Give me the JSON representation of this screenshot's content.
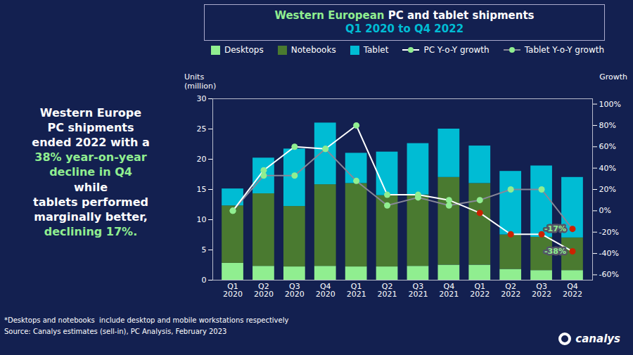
{
  "chart_data": {
    "type": "bar",
    "title": "Western European PC and tablet shipments",
    "title_color": "#ffffff",
    "title_highlight": {
      "text": "Western European",
      "color": "#90ee90"
    },
    "subtitle": "Q1 2020 to Q4 2022",
    "subtitle_color": "#00bcd4",
    "y_label": "Units\n(million)",
    "y2_label": "Growth",
    "categories": [
      "Q1\n2020",
      "Q2\n2020",
      "Q3\n2020",
      "Q4\n2020",
      "Q1\n2021",
      "Q2\n2021",
      "Q3\n2021",
      "Q4\n2021",
      "Q1\n2022",
      "Q2\n2022",
      "Q3\n2022",
      "Q4\n2022"
    ],
    "series": [
      {
        "name": "Desktops",
        "type": "bar",
        "color": "#90ee90",
        "values": [
          2.8,
          2.3,
          2.2,
          2.3,
          2.2,
          2.2,
          2.3,
          2.5,
          2.5,
          1.8,
          1.6,
          1.6
        ]
      },
      {
        "name": "Notebooks",
        "type": "bar",
        "color": "#4a7a30",
        "values": [
          9.5,
          12.0,
          10.0,
          13.5,
          13.8,
          11.8,
          11.8,
          14.5,
          13.5,
          5.7,
          5.5,
          5.4
        ]
      },
      {
        "name": "Tablet",
        "type": "bar",
        "color": "#00bcd4",
        "values": [
          2.8,
          5.9,
          9.5,
          10.2,
          5.0,
          7.2,
          8.5,
          8.0,
          6.2,
          10.5,
          11.8,
          10.0
        ]
      },
      {
        "name": "PC Y-o-Y growth",
        "type": "line",
        "axis": "y2",
        "color": "#ffffff",
        "marker": "circle",
        "colors": [
          "#90ee90",
          "#90ee90",
          "#90ee90",
          "#90ee90",
          "#90ee90",
          "#90ee90",
          "#90ee90",
          "#90ee90",
          "#cc2200",
          "#cc2200",
          "#cc2200",
          "#cc2200"
        ],
        "values": [
          0.0,
          38.0,
          60.0,
          58.0,
          80.0,
          15.0,
          15.0,
          10.0,
          -2.0,
          -22.0,
          -22.0,
          -38.0
        ]
      },
      {
        "name": "Tablet Y-o-Y growth",
        "type": "line",
        "axis": "y2",
        "color": "#888899",
        "marker": "circle",
        "colors": [
          "#90ee90",
          "#90ee90",
          "#90ee90",
          "#90ee90",
          "#90ee90",
          "#90ee90",
          "#90ee90",
          "#90ee90",
          "#90ee90",
          "#90ee90",
          "#90ee90",
          "#cc2200"
        ],
        "values": [
          0.0,
          33.0,
          33.0,
          58.0,
          28.0,
          5.0,
          12.5,
          5.0,
          10.0,
          20.0,
          20.0,
          -17.0
        ]
      }
    ],
    "stacked": true,
    "ylim": [
      0,
      30
    ],
    "yticks": [
      0,
      5,
      10,
      15,
      20,
      25,
      30
    ],
    "y2lim": [
      -65,
      105
    ],
    "y2ticks": [
      {
        "value": -60,
        "label": "-60%"
      },
      {
        "value": -40,
        "label": "-40%"
      },
      {
        "value": -20,
        "label": "-20%"
      },
      {
        "value": 0,
        "label": "0%"
      },
      {
        "value": 20,
        "label": "20%"
      },
      {
        "value": 40,
        "label": "40%"
      },
      {
        "value": 60,
        "label": "60%"
      },
      {
        "value": 80,
        "label": "80%"
      },
      {
        "value": 100,
        "label": "100%"
      }
    ],
    "grid": false,
    "legend": "top",
    "annotations": [
      {
        "text": "-17%",
        "series": "Tablet Y-o-Y growth",
        "category": "Q4\n2022"
      },
      {
        "text": "-38%",
        "series": "PC Y-o-Y growth",
        "category": "Q4\n2022"
      }
    ],
    "side_text": [
      {
        "text": "Western Europe\nPC shipments\nended 2022 with a",
        "color": "#ffffff"
      },
      {
        "text": "38% year-on-year\ndecline in Q4",
        "color": "#90ee90"
      },
      {
        "text": "while\ntablets performed\nmarginally better,",
        "color": "#ffffff"
      },
      {
        "text": "declining 17%.",
        "color": "#90ee90"
      }
    ],
    "caption": [
      "*Desktops and notebooks  include desktop and mobile workstations respectively",
      "Source: Canalys estimates (sell-in), PC Analysis, February 2023"
    ],
    "logo": "canalys",
    "background": "#132050"
  }
}
